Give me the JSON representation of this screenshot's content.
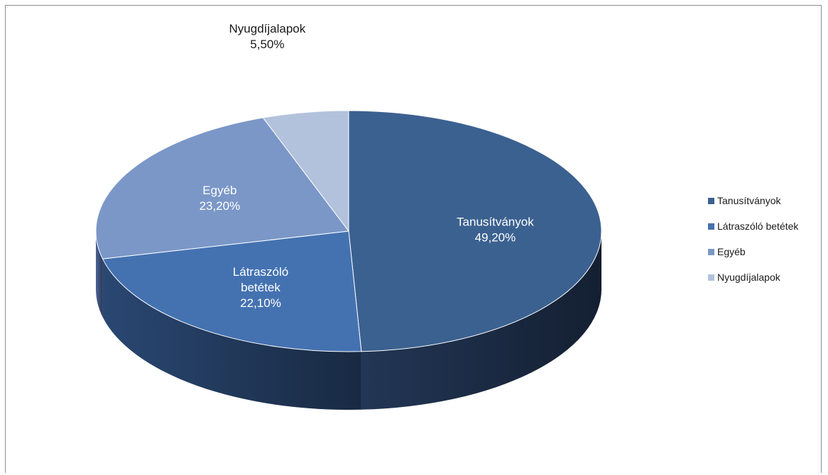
{
  "chart_data": {
    "type": "pie",
    "title": "",
    "categories": [
      "Tanusítványok",
      "Látraszóló betétek",
      "Egyéb",
      "Nyugdíjalapok"
    ],
    "values": [
      49.2,
      22.1,
      23.2,
      5.5
    ],
    "data_labels": [
      {
        "lines": [
          "Tanusítványok",
          "49,20%"
        ]
      },
      {
        "lines": [
          "Látraszóló",
          "betétek",
          "22,10%"
        ]
      },
      {
        "lines": [
          "Egyéb",
          "23,20%"
        ]
      },
      {
        "lines": [
          "Nyugdíjalapok",
          "5,50%"
        ]
      }
    ],
    "colors": [
      "#3b6190",
      "#4472b1",
      "#7a97c7",
      "#b3c2dc"
    ],
    "side_colors": [
      "#24395a",
      "#2c4b78",
      "#5068a0",
      "#7d8fb5"
    ],
    "legend": {
      "placement": "right",
      "entries": [
        "Tanusítványok",
        "Látraszóló betétek",
        "Egyéb",
        "Nyugdíjalapok"
      ]
    },
    "style": "3d-pie"
  }
}
